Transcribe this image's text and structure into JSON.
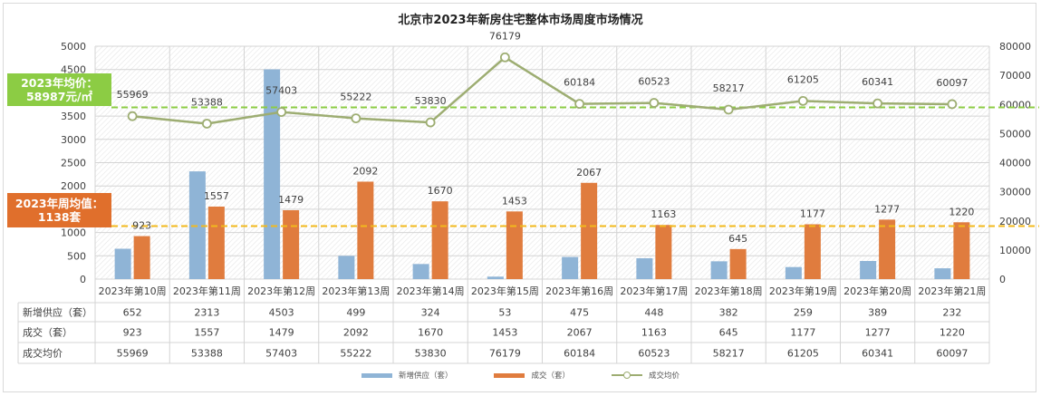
{
  "chart_data": {
    "type": "bar",
    "title": "北京市2023年新房住宅整体市场周度市场情况",
    "categories": [
      "2023年第10周",
      "2023年第11周",
      "2023年第12周",
      "2023年第13周",
      "2023年第14周",
      "2023年第15周",
      "2023年第16周",
      "2023年第17周",
      "2023年第18周",
      "2023年第19周",
      "2023年第20周",
      "2023年第21周"
    ],
    "series": [
      {
        "name": "新增供应（套）",
        "kind": "bar",
        "axis": "left",
        "color": "#8fb4d6",
        "values": [
          652,
          2313,
          4503,
          499,
          324,
          53,
          475,
          448,
          382,
          259,
          389,
          232
        ]
      },
      {
        "name": "成交（套）",
        "kind": "bar",
        "axis": "left",
        "color": "#e07c3e",
        "values": [
          923,
          1557,
          1479,
          2092,
          1670,
          1453,
          2067,
          1163,
          645,
          1177,
          1277,
          1220
        ]
      },
      {
        "name": "成交均价",
        "kind": "line",
        "axis": "right",
        "color": "#9dad72",
        "values": [
          55969,
          53388,
          57403,
          55222,
          53830,
          76179,
          60184,
          60523,
          58217,
          61205,
          60341,
          60097
        ]
      }
    ],
    "left_axis": {
      "ylim": [
        0,
        5000
      ],
      "ticks": [
        "0",
        "500",
        "1000",
        "1500",
        "2000",
        "2500",
        "3000",
        "3500",
        "4000",
        "4500",
        "5000"
      ]
    },
    "right_axis": {
      "ylim": [
        0,
        80000
      ],
      "ticks": [
        "0",
        "10000",
        "20000",
        "30000",
        "40000",
        "50000",
        "60000",
        "70000",
        "80000"
      ]
    },
    "reference_lines": [
      {
        "label": "2023年均价：58987元/㎡",
        "axis": "right",
        "value": 58987,
        "color": "#8ccc44"
      },
      {
        "label": "2023年周均值：1138套",
        "axis": "left",
        "value": 1138,
        "color": "#f2b91c"
      }
    ],
    "data_labels": {
      "成交（套）": [
        "923",
        "1557",
        "1479",
        "2092",
        "1670",
        "1453",
        "2067",
        "1163",
        "645",
        "1177",
        "1277",
        "1220"
      ],
      "成交均价": [
        "55969",
        "53388",
        "57403",
        "55222",
        "53830",
        "76179",
        "60184",
        "60523",
        "58217",
        "61205",
        "60341",
        "60097"
      ]
    },
    "table": {
      "rows": [
        {
          "label": "新增供应（套）",
          "cells": [
            "652",
            "2313",
            "4503",
            "499",
            "324",
            "53",
            "475",
            "448",
            "382",
            "259",
            "389",
            "232"
          ]
        },
        {
          "label": "成交（套）",
          "cells": [
            "923",
            "1557",
            "1479",
            "2092",
            "1670",
            "1453",
            "2067",
            "1163",
            "645",
            "1177",
            "1277",
            "1220"
          ]
        },
        {
          "label": "成交均价",
          "cells": [
            "55969",
            "53388",
            "57403",
            "55222",
            "53830",
            "76179",
            "60184",
            "60523",
            "58217",
            "61205",
            "60341",
            "60097"
          ]
        }
      ]
    },
    "legend": {
      "placement": "bottom",
      "items": [
        "新增供应（套）",
        "成交（套）",
        "成交均价"
      ]
    },
    "grid": true
  },
  "callouts": {
    "price": {
      "line1": "2023年均价：",
      "line2": "58987元/㎡"
    },
    "deal": {
      "line1": "2023年周均值：",
      "line2": "1138套"
    }
  },
  "legend_labels": {
    "supply": "新增供应（套）",
    "deals": "成交（套）",
    "price": "成交均价"
  }
}
